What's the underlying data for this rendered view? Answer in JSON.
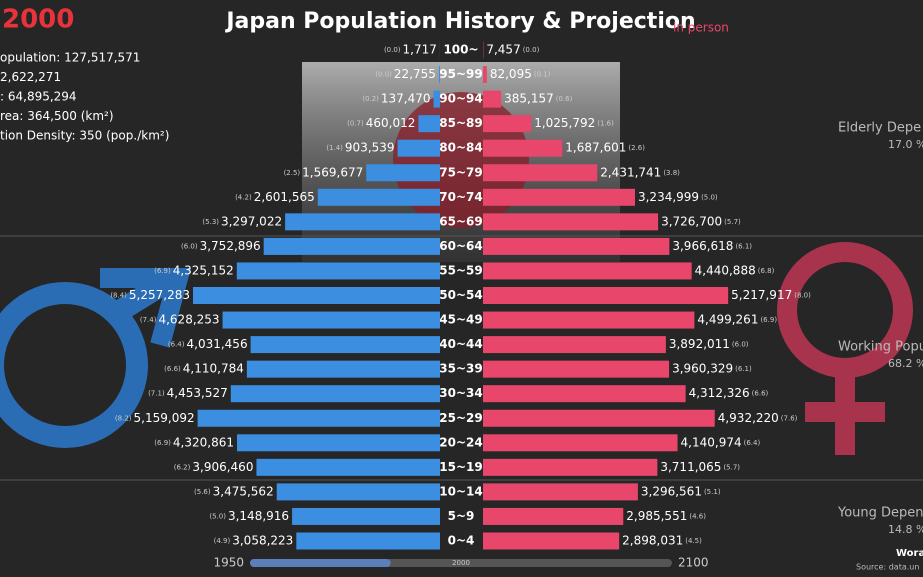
{
  "chart_data": {
    "type": "pyramid",
    "title": "Japan Population History & Projection",
    "subtitle": "in person",
    "categories": [
      "100~",
      "95~99",
      "90~94",
      "85~89",
      "80~84",
      "75~79",
      "70~74",
      "65~69",
      "60~64",
      "55~59",
      "50~54",
      "45~49",
      "40~44",
      "35~39",
      "30~34",
      "25~29",
      "20~24",
      "15~19",
      "10~14",
      "5~9",
      "0~4"
    ],
    "series": [
      {
        "color": "#3b8ee0",
        "values": [
          1717,
          22755,
          137470,
          460012,
          903539,
          1569677,
          2601565,
          3297022,
          3752896,
          4325152,
          5257283,
          4628253,
          4031456,
          4110784,
          4453527,
          5159092,
          4320861,
          3906460,
          3475562,
          3148916,
          3058223
        ],
        "value_labels": [
          "1,717",
          "22,755",
          "137,470",
          "460,012",
          "903,539",
          "1,569,677",
          "2,601,565",
          "3,297,022",
          "3,752,896",
          "4,325,152",
          "5,257,283",
          "4,628,253",
          "4,031,456",
          "4,110,784",
          "4,453,527",
          "5,159,092",
          "4,320,861",
          "3,906,460",
          "3,475,562",
          "3,148,916",
          "3,058,223"
        ],
        "shares": [
          "(0.0)",
          "(0.0)",
          "(0.2)",
          "(0.7)",
          "(1.4)",
          "(2.5)",
          "(4.2)",
          "(5.3)",
          "(6.0)",
          "(6.9)",
          "(8.4)",
          "(7.4)",
          "(6.4)",
          "(6.6)",
          "(7.1)",
          "(8.2)",
          "(6.9)",
          "(6.2)",
          "(5.6)",
          "(5.0)",
          "(4.9)"
        ]
      },
      {
        "color": "#e8476b",
        "values": [
          7457,
          82095,
          385157,
          1025792,
          1687601,
          2431741,
          3234999,
          3726700,
          3966618,
          4440888,
          5217917,
          4499261,
          3892011,
          3960329,
          4312326,
          4932220,
          4140974,
          3711065,
          3296561,
          2985551,
          2898031
        ],
        "value_labels": [
          "7,457",
          "82,095",
          "385,157",
          "1,025,792",
          "1,687,601",
          "2,431,741",
          "3,234,999",
          "3,726,700",
          "3,966,618",
          "4,440,888",
          "5,217,917",
          "4,499,261",
          "3,892,011",
          "3,960,329",
          "4,312,326",
          "4,932,220",
          "4,140,974",
          "3,711,065",
          "3,296,561",
          "2,985,551",
          "2,898,031"
        ],
        "shares": [
          "(0.0)",
          "(0.1)",
          "(0.6)",
          "(1.6)",
          "(2.6)",
          "(3.8)",
          "(5.0)",
          "(5.7)",
          "(6.1)",
          "(6.8)",
          "(8.0)",
          "(6.9)",
          "(6.0)",
          "(6.1)",
          "(6.6)",
          "(7.6)",
          "(6.4)",
          "(5.7)",
          "(5.1)",
          "(4.6)",
          "(4.5)"
        ]
      }
    ],
    "timeline": {
      "start": 1950,
      "current": 2000,
      "end": 2100
    },
    "stats": [
      "opulation: 127,517,571",
      "2,622,271",
      ": 64,895,294",
      "rea: 364,500 (km²)",
      "tion Density: 350 (pop./km²)"
    ],
    "dependency": [
      {
        "label": "Elderly Depe",
        "value": "17.0 %"
      },
      {
        "label": "Working Popu",
        "value": "68.2 %"
      },
      {
        "label": "Young Depen",
        "value": "14.8 %"
      }
    ],
    "footer": [
      "Wora",
      "Source: data.un"
    ]
  }
}
